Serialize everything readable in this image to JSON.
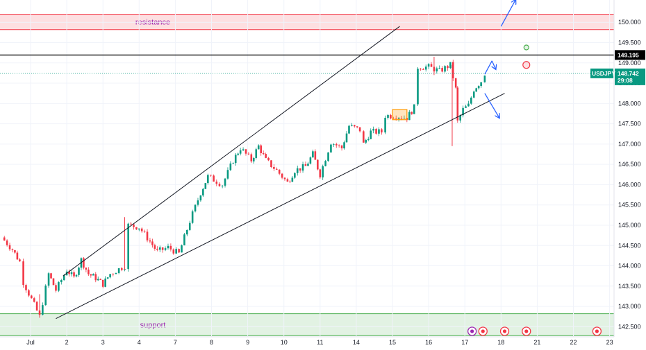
{
  "chart_data": {
    "type": "candlestick",
    "symbol": "USDJPY",
    "current_price": "148.742",
    "countdown": "29:08",
    "level_price": "149.195",
    "level_value": 149.195,
    "current_value": 148.742,
    "ylim": [
      142.25,
      150.55
    ],
    "y_ticks": [
      {
        "value": 150.0,
        "label": "150.000"
      },
      {
        "value": 149.5,
        "label": "149.500"
      },
      {
        "value": 149.0,
        "label": "149.000"
      },
      {
        "value": 148.5,
        "label": "148.500"
      },
      {
        "value": 148.0,
        "label": "148.000"
      },
      {
        "value": 147.5,
        "label": "147.500"
      },
      {
        "value": 147.0,
        "label": "147.000"
      },
      {
        "value": 146.5,
        "label": "146.500"
      },
      {
        "value": 146.0,
        "label": "146.000"
      },
      {
        "value": 145.5,
        "label": "145.500"
      },
      {
        "value": 145.0,
        "label": "145.000"
      },
      {
        "value": 144.5,
        "label": "144.500"
      },
      {
        "value": 144.0,
        "label": "144.000"
      },
      {
        "value": 143.5,
        "label": "143.500"
      },
      {
        "value": 143.0,
        "label": "143.000"
      },
      {
        "value": 142.5,
        "label": "142.500"
      }
    ],
    "x_ticks": [
      {
        "t": 0.0,
        "label": "Jul"
      },
      {
        "t": 1.0,
        "label": "2"
      },
      {
        "t": 2.0,
        "label": "3"
      },
      {
        "t": 3.0,
        "label": "4"
      },
      {
        "t": 4.0,
        "label": "7"
      },
      {
        "t": 5.0,
        "label": "8"
      },
      {
        "t": 6.0,
        "label": "9"
      },
      {
        "t": 7.0,
        "label": "10"
      },
      {
        "t": 8.0,
        "label": "11"
      },
      {
        "t": 9.0,
        "label": "14"
      },
      {
        "t": 10.0,
        "label": "15"
      },
      {
        "t": 11.0,
        "label": "16"
      },
      {
        "t": 12.0,
        "label": "17"
      },
      {
        "t": 13.0,
        "label": "18"
      },
      {
        "t": 14.0,
        "label": "21"
      },
      {
        "t": 15.0,
        "label": "22"
      },
      {
        "t": 16.0,
        "label": "23"
      }
    ],
    "zones": [
      {
        "name": "resistance",
        "label": "resistance",
        "from": 149.82,
        "to": 150.2,
        "color": "#f23645"
      },
      {
        "name": "support",
        "label": "support",
        "from": 142.28,
        "to": 142.82,
        "color": "#4caf50"
      }
    ],
    "price_path": [
      [
        -0.8,
        144.7
      ],
      [
        -0.5,
        144.4
      ],
      [
        -0.3,
        144.1
      ],
      [
        -0.2,
        143.6
      ],
      [
        0.25,
        142.75
      ],
      [
        0.5,
        143.8
      ],
      [
        0.7,
        143.4
      ],
      [
        1.0,
        143.9
      ],
      [
        1.2,
        143.7
      ],
      [
        1.4,
        144.15
      ],
      [
        1.6,
        143.8
      ],
      [
        1.8,
        143.7
      ],
      [
        2.0,
        143.55
      ],
      [
        2.2,
        143.8
      ],
      [
        2.6,
        144.0
      ],
      [
        2.7,
        145.0
      ],
      [
        3.0,
        144.95
      ],
      [
        3.3,
        144.6
      ],
      [
        3.5,
        144.35
      ],
      [
        3.8,
        144.45
      ],
      [
        4.1,
        144.3
      ],
      [
        4.4,
        145.1
      ],
      [
        4.7,
        145.8
      ],
      [
        4.9,
        146.2
      ],
      [
        5.3,
        146.0
      ],
      [
        5.6,
        146.6
      ],
      [
        5.8,
        146.9
      ],
      [
        6.1,
        146.6
      ],
      [
        6.3,
        146.95
      ],
      [
        6.5,
        146.6
      ],
      [
        6.8,
        146.35
      ],
      [
        7.1,
        146.05
      ],
      [
        7.3,
        146.35
      ],
      [
        7.6,
        146.45
      ],
      [
        7.8,
        146.75
      ],
      [
        8.0,
        146.25
      ],
      [
        8.3,
        147.05
      ],
      [
        8.6,
        146.9
      ],
      [
        8.8,
        147.45
      ],
      [
        9.1,
        147.35
      ],
      [
        9.2,
        147.0
      ],
      [
        9.4,
        147.3
      ],
      [
        9.7,
        147.3
      ],
      [
        9.8,
        147.7
      ],
      [
        10.1,
        147.7
      ],
      [
        10.4,
        147.65
      ],
      [
        10.6,
        147.9
      ],
      [
        10.7,
        148.9
      ],
      [
        11.0,
        148.9
      ],
      [
        11.3,
        148.8
      ],
      [
        11.6,
        148.95
      ],
      [
        11.75,
        148.35
      ],
      [
        11.8,
        147.55
      ],
      [
        11.95,
        147.85
      ],
      [
        12.1,
        147.95
      ],
      [
        12.25,
        148.35
      ],
      [
        12.45,
        148.55
      ],
      [
        12.55,
        148.74
      ]
    ],
    "candles": [
      {
        "t": 0.25,
        "low": 142.72,
        "high": 143.3
      },
      {
        "t": 2.6,
        "low": 143.9,
        "high": 145.2
      },
      {
        "t": 11.65,
        "low": 146.95,
        "high": 148.95
      },
      {
        "t": 11.15,
        "low": 148.7,
        "high": 149.15
      }
    ],
    "trendlines": [
      {
        "name": "upper-channel",
        "from": [
          0.9,
          143.75
        ],
        "to": [
          10.2,
          149.9
        ]
      },
      {
        "name": "lower-channel",
        "from": [
          0.7,
          142.7
        ],
        "to": [
          13.1,
          148.25
        ]
      }
    ],
    "consolidation_box": {
      "from": [
        10.0,
        147.6
      ],
      "to": [
        10.4,
        147.85
      ]
    },
    "projections": [
      {
        "name": "bull-arrow-up",
        "from": [
          13.0,
          149.9
        ],
        "to": [
          13.4,
          150.55
        ]
      },
      {
        "name": "bull-arrow-zig",
        "from": [
          12.55,
          148.72
        ],
        "to": [
          12.75,
          149.05
        ]
      },
      {
        "name": "bull-arrow-zig-2",
        "from": [
          12.75,
          149.05
        ],
        "to": [
          12.85,
          148.85
        ]
      },
      {
        "name": "bear-arrow-down",
        "from": [
          12.55,
          148.25
        ],
        "to": [
          12.95,
          147.65
        ]
      }
    ],
    "markers": [
      {
        "name": "green-circle",
        "t": 13.7,
        "value": 149.38,
        "color": "#4caf50"
      },
      {
        "name": "red-circle",
        "t": 13.7,
        "value": 148.95,
        "color": "#f23645"
      }
    ],
    "event_icons": [
      {
        "name": "lightning-event-icon",
        "t": 12.2,
        "color": "#9c27b0"
      },
      {
        "name": "us-flag-event-icon",
        "t": 12.5,
        "color": "#f23645"
      },
      {
        "name": "target-event-icon",
        "t": 13.1,
        "color": "#f23645"
      },
      {
        "name": "us-flag-event-icon-2",
        "t": 13.7,
        "color": "#f23645"
      },
      {
        "name": "us-flag-event-icon-3",
        "t": 15.65,
        "color": "#f23645"
      }
    ],
    "colors": {
      "up": "#089981",
      "down": "#f23645",
      "trendline": "#131722",
      "projection": "#2962ff",
      "box": "#ff9800",
      "current_price": "#089981"
    }
  }
}
